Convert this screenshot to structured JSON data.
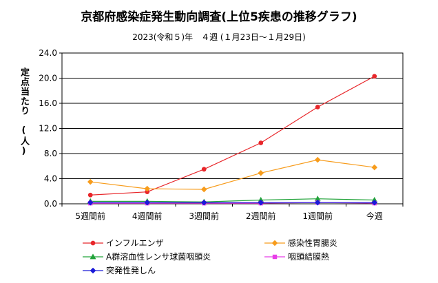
{
  "chart_data": {
    "type": "line",
    "title": "京都府感染症発生動向調査(上位5疾患の推移グラフ)",
    "subtitle": "2023(令和５)年　４週 (１月23日～１月29日)",
    "ylabel": "定点当たり　(人)",
    "xlabel": "",
    "categories": [
      "5週間前",
      "4週間前",
      "3週間前",
      "2週間前",
      "1週間前",
      "今週"
    ],
    "ylim": [
      0,
      24
    ],
    "yticks": [
      "0.0",
      "4.0",
      "8.0",
      "12.0",
      "16.0",
      "20.0",
      "24.0"
    ],
    "grid": true,
    "legend_position": "bottom",
    "series": [
      {
        "name": "インフルエンザ",
        "values": [
          1.4,
          1.9,
          5.5,
          9.7,
          15.4,
          20.3
        ],
        "color": "#e8262a",
        "marker": "circle"
      },
      {
        "name": "感染性胃腸炎",
        "values": [
          3.5,
          2.4,
          2.3,
          4.9,
          7.0,
          5.8
        ],
        "color": "#f79c1c",
        "marker": "diamond"
      },
      {
        "name": "A群溶血性レンサ球菌咽頭炎",
        "values": [
          0.4,
          0.4,
          0.3,
          0.6,
          0.8,
          0.6
        ],
        "color": "#22a33a",
        "marker": "triangle"
      },
      {
        "name": "咽頭結膜熱",
        "values": [
          0.1,
          0.1,
          0.1,
          0.1,
          0.2,
          0.1
        ],
        "color": "#e83ee8",
        "marker": "square"
      },
      {
        "name": "突発性発しん",
        "values": [
          0.2,
          0.2,
          0.2,
          0.2,
          0.2,
          0.2
        ],
        "color": "#1a1ad8",
        "marker": "diamond"
      }
    ]
  }
}
